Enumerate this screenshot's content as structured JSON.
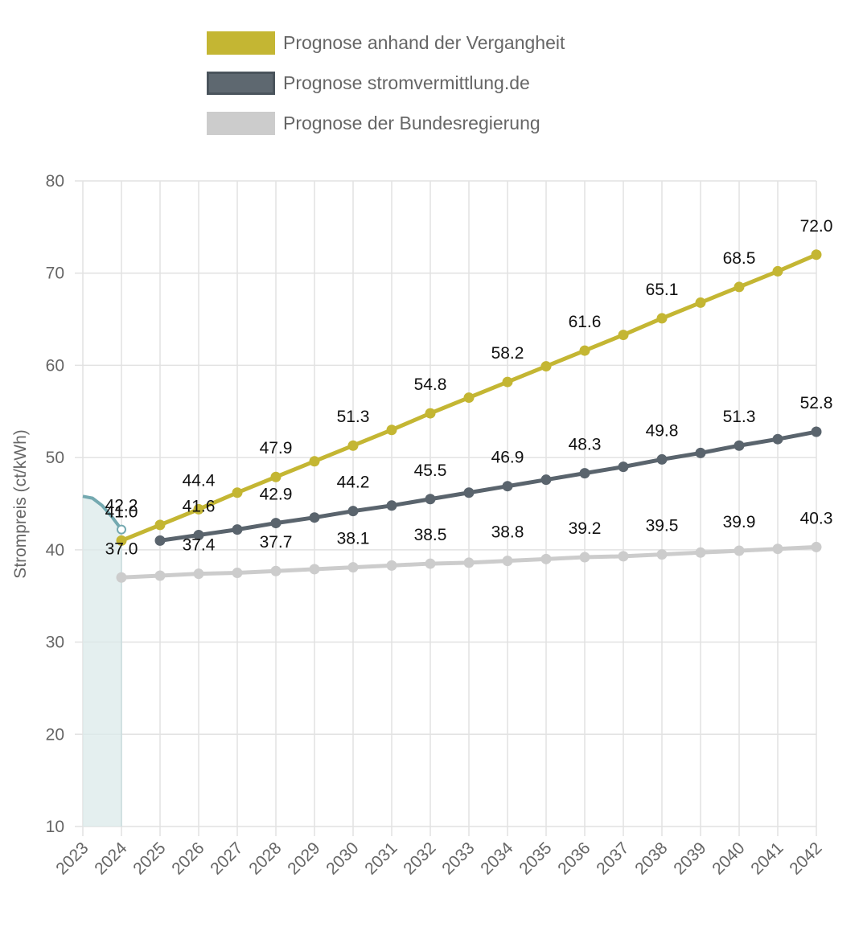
{
  "chart_data": {
    "type": "line",
    "ylabel": "Strompreis (ct/kWh)",
    "ylim": [
      10,
      80
    ],
    "yticks": [
      10,
      20,
      30,
      40,
      50,
      60,
      70,
      80
    ],
    "x": [
      "2023",
      "2024",
      "2025",
      "2026",
      "2027",
      "2028",
      "2029",
      "2030",
      "2031",
      "2032",
      "2033",
      "2034",
      "2035",
      "2036",
      "2037",
      "2038",
      "2039",
      "2040",
      "2041",
      "2042"
    ],
    "grid": true,
    "legend_position": "top",
    "historical": {
      "color": "#74a9b0",
      "fill_color": "#dbe9ea",
      "points": [
        [
          2023,
          45.8
        ],
        [
          2023.25,
          45.6
        ],
        [
          2023.5,
          44.8
        ],
        [
          2023.75,
          43.6
        ],
        [
          2024,
          42.2
        ]
      ]
    },
    "series": [
      {
        "name": "Prognose anhand der Vergangheit",
        "color": "#c4b633",
        "x": [
          "2024",
          "2025",
          "2026",
          "2027",
          "2028",
          "2029",
          "2030",
          "2031",
          "2032",
          "2033",
          "2034",
          "2035",
          "2036",
          "2037",
          "2038",
          "2039",
          "2040",
          "2041",
          "2042"
        ],
        "values": [
          41.0,
          42.7,
          44.4,
          46.2,
          47.9,
          49.6,
          51.3,
          53.0,
          54.8,
          56.5,
          58.2,
          59.9,
          61.6,
          63.3,
          65.1,
          66.8,
          68.5,
          70.2,
          72.0
        ],
        "labels": [
          "41.0",
          "",
          "44.4",
          "",
          "47.9",
          "",
          "51.3",
          "",
          "54.8",
          "",
          "58.2",
          "",
          "61.6",
          "",
          "65.1",
          "",
          "68.5",
          "",
          "72.0"
        ]
      },
      {
        "name": "Prognose stromvermittlung.de",
        "color": "#5a646d",
        "x": [
          "2025",
          "2026",
          "2027",
          "2028",
          "2029",
          "2030",
          "2031",
          "2032",
          "2033",
          "2034",
          "2035",
          "2036",
          "2037",
          "2038",
          "2039",
          "2040",
          "2041",
          "2042"
        ],
        "values": [
          41.0,
          41.6,
          42.2,
          42.9,
          43.5,
          44.2,
          44.8,
          45.5,
          46.2,
          46.9,
          47.6,
          48.3,
          49.0,
          49.8,
          50.5,
          51.3,
          52.0,
          52.8
        ],
        "labels": [
          "",
          "41.6",
          "",
          "42.9",
          "",
          "44.2",
          "",
          "45.5",
          "",
          "46.9",
          "",
          "48.3",
          "",
          "49.8",
          "",
          "51.3",
          "",
          "52.8"
        ]
      },
      {
        "name": "Prognose der Bundesregierung",
        "color": "#cccccc",
        "x": [
          "2024",
          "2025",
          "2026",
          "2027",
          "2028",
          "2029",
          "2030",
          "2031",
          "2032",
          "2033",
          "2034",
          "2035",
          "2036",
          "2037",
          "2038",
          "2039",
          "2040",
          "2041",
          "2042"
        ],
        "values": [
          37.0,
          37.2,
          37.4,
          37.5,
          37.7,
          37.9,
          38.1,
          38.3,
          38.5,
          38.6,
          38.8,
          39.0,
          39.2,
          39.3,
          39.5,
          39.7,
          39.9,
          40.1,
          40.3
        ],
        "labels": [
          "37.0",
          "",
          "37.4",
          "",
          "37.7",
          "",
          "38.1",
          "",
          "38.5",
          "",
          "38.8",
          "",
          "39.2",
          "",
          "39.5",
          "",
          "39.9",
          "",
          "40.3"
        ]
      }
    ],
    "extra_labels": [
      {
        "x": "2024",
        "y": 42.2,
        "label": "42.2"
      }
    ]
  },
  "legend": {
    "items": [
      {
        "label": "Prognose anhand der Vergangheit",
        "color": "#c4b633",
        "border": "#c4b633"
      },
      {
        "label": "Prognose stromvermittlung.de",
        "color": "#5e6870",
        "border": "#4a545c"
      },
      {
        "label": "Prognose der Bundesregierung",
        "color": "#cccccc",
        "border": "#cccccc"
      }
    ]
  }
}
